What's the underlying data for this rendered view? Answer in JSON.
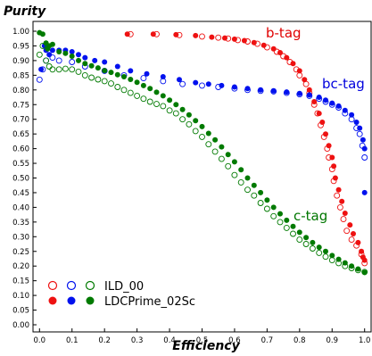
{
  "chart_data": {
    "type": "scatter",
    "title": "",
    "xlabel": "Efficiency",
    "ylabel": "Purity",
    "xlim": [
      -0.02,
      1.02
    ],
    "ylim": [
      0.0,
      1.0
    ],
    "xticks": [
      "0.0",
      "0.1",
      "0.2",
      "0.3",
      "0.4",
      "0.5",
      "0.6",
      "0.7",
      "0.8",
      "0.9",
      "1.0"
    ],
    "yticks": [
      "0.00",
      "0.05",
      "0.10",
      "0.15",
      "0.20",
      "0.25",
      "0.30",
      "0.35",
      "0.40",
      "0.45",
      "0.50",
      "0.55",
      "0.60",
      "0.65",
      "0.70",
      "0.75",
      "0.80",
      "0.85",
      "0.90",
      "0.95",
      "1.00"
    ],
    "legend_position": "bottom-left",
    "legend": [
      {
        "label": "ILD_00",
        "style": "open"
      },
      {
        "label": "LDCPrime_02Sc",
        "style": "filled"
      }
    ],
    "annotations": [
      {
        "text": "b-tag",
        "color": "#e00000"
      },
      {
        "text": "bc-tag",
        "color": "#0000dd"
      },
      {
        "text": "c-tag",
        "color": "#007700"
      }
    ],
    "colors": {
      "b": "#ee1111",
      "bc": "#0011ee",
      "c": "#007a00"
    },
    "series": [
      {
        "tag": "b-tag",
        "sample": "ILD_00",
        "open": true,
        "color": "#ee1111",
        "points": [
          [
            0.28,
            0.99
          ],
          [
            0.36,
            0.99
          ],
          [
            0.43,
            0.987
          ],
          [
            0.5,
            0.982
          ],
          [
            0.55,
            0.978
          ],
          [
            0.58,
            0.975
          ],
          [
            0.61,
            0.97
          ],
          [
            0.64,
            0.965
          ],
          [
            0.67,
            0.957
          ],
          [
            0.7,
            0.945
          ],
          [
            0.73,
            0.93
          ],
          [
            0.75,
            0.915
          ],
          [
            0.77,
            0.895
          ],
          [
            0.79,
            0.87
          ],
          [
            0.8,
            0.85
          ],
          [
            0.82,
            0.82
          ],
          [
            0.83,
            0.79
          ],
          [
            0.845,
            0.75
          ],
          [
            0.855,
            0.72
          ],
          [
            0.865,
            0.68
          ],
          [
            0.875,
            0.64
          ],
          [
            0.885,
            0.6
          ],
          [
            0.89,
            0.57
          ],
          [
            0.9,
            0.53
          ],
          [
            0.905,
            0.49
          ],
          [
            0.915,
            0.44
          ],
          [
            0.925,
            0.4
          ],
          [
            0.935,
            0.36
          ],
          [
            0.945,
            0.32
          ],
          [
            0.96,
            0.29
          ],
          [
            0.975,
            0.27
          ],
          [
            0.99,
            0.24
          ],
          [
            1.0,
            0.21
          ]
        ]
      },
      {
        "tag": "b-tag",
        "sample": "LDCPrime_02Sc",
        "open": false,
        "color": "#ee1111",
        "points": [
          [
            0.27,
            0.99
          ],
          [
            0.35,
            0.99
          ],
          [
            0.42,
            0.988
          ],
          [
            0.48,
            0.985
          ],
          [
            0.53,
            0.98
          ],
          [
            0.57,
            0.977
          ],
          [
            0.6,
            0.973
          ],
          [
            0.63,
            0.968
          ],
          [
            0.66,
            0.961
          ],
          [
            0.69,
            0.952
          ],
          [
            0.72,
            0.94
          ],
          [
            0.74,
            0.927
          ],
          [
            0.76,
            0.91
          ],
          [
            0.78,
            0.89
          ],
          [
            0.8,
            0.865
          ],
          [
            0.815,
            0.835
          ],
          [
            0.83,
            0.8
          ],
          [
            0.845,
            0.76
          ],
          [
            0.86,
            0.72
          ],
          [
            0.87,
            0.69
          ],
          [
            0.88,
            0.65
          ],
          [
            0.89,
            0.61
          ],
          [
            0.9,
            0.57
          ],
          [
            0.905,
            0.54
          ],
          [
            0.91,
            0.5
          ],
          [
            0.92,
            0.46
          ],
          [
            0.93,
            0.42
          ],
          [
            0.94,
            0.38
          ],
          [
            0.955,
            0.34
          ],
          [
            0.965,
            0.31
          ],
          [
            0.98,
            0.28
          ],
          [
            0.99,
            0.25
          ],
          [
            0.995,
            0.23
          ],
          [
            1.0,
            0.22
          ]
        ]
      },
      {
        "tag": "bc-tag",
        "sample": "ILD_00",
        "open": true,
        "color": "#0011ee",
        "points": [
          [
            0.0,
            0.835
          ],
          [
            0.01,
            0.87
          ],
          [
            0.02,
            0.9
          ],
          [
            0.04,
            0.91
          ],
          [
            0.06,
            0.9
          ],
          [
            0.1,
            0.895
          ],
          [
            0.14,
            0.88
          ],
          [
            0.2,
            0.865
          ],
          [
            0.26,
            0.85
          ],
          [
            0.32,
            0.84
          ],
          [
            0.38,
            0.83
          ],
          [
            0.44,
            0.82
          ],
          [
            0.5,
            0.815
          ],
          [
            0.55,
            0.81
          ],
          [
            0.6,
            0.805
          ],
          [
            0.64,
            0.8
          ],
          [
            0.68,
            0.797
          ],
          [
            0.72,
            0.795
          ],
          [
            0.76,
            0.79
          ],
          [
            0.8,
            0.785
          ],
          [
            0.83,
            0.78
          ],
          [
            0.86,
            0.77
          ],
          [
            0.88,
            0.76
          ],
          [
            0.9,
            0.75
          ],
          [
            0.92,
            0.74
          ],
          [
            0.94,
            0.72
          ],
          [
            0.96,
            0.7
          ],
          [
            0.975,
            0.67
          ],
          [
            0.985,
            0.65
          ],
          [
            0.993,
            0.61
          ],
          [
            1.0,
            0.57
          ]
        ]
      },
      {
        "tag": "bc-tag",
        "sample": "LDCPrime_02Sc",
        "open": false,
        "color": "#0011ee",
        "points": [
          [
            0.005,
            0.87
          ],
          [
            0.015,
            0.95
          ],
          [
            0.02,
            0.935
          ],
          [
            0.03,
            0.92
          ],
          [
            0.04,
            0.935
          ],
          [
            0.06,
            0.935
          ],
          [
            0.08,
            0.935
          ],
          [
            0.1,
            0.93
          ],
          [
            0.12,
            0.92
          ],
          [
            0.14,
            0.91
          ],
          [
            0.17,
            0.9
          ],
          [
            0.2,
            0.895
          ],
          [
            0.24,
            0.88
          ],
          [
            0.28,
            0.865
          ],
          [
            0.33,
            0.855
          ],
          [
            0.38,
            0.845
          ],
          [
            0.43,
            0.835
          ],
          [
            0.48,
            0.825
          ],
          [
            0.52,
            0.82
          ],
          [
            0.56,
            0.815
          ],
          [
            0.6,
            0.81
          ],
          [
            0.64,
            0.805
          ],
          [
            0.68,
            0.8
          ],
          [
            0.72,
            0.797
          ],
          [
            0.76,
            0.793
          ],
          [
            0.8,
            0.788
          ],
          [
            0.83,
            0.783
          ],
          [
            0.86,
            0.775
          ],
          [
            0.88,
            0.765
          ],
          [
            0.9,
            0.755
          ],
          [
            0.92,
            0.745
          ],
          [
            0.94,
            0.73
          ],
          [
            0.96,
            0.715
          ],
          [
            0.975,
            0.69
          ],
          [
            0.985,
            0.67
          ],
          [
            0.995,
            0.63
          ],
          [
            1.0,
            0.6
          ],
          [
            1.0,
            0.45
          ]
        ]
      },
      {
        "tag": "c-tag",
        "sample": "ILD_00",
        "open": true,
        "color": "#007a00",
        "points": [
          [
            0.0,
            0.92
          ],
          [
            0.01,
            0.95
          ],
          [
            0.02,
            0.9
          ],
          [
            0.03,
            0.88
          ],
          [
            0.04,
            0.87
          ],
          [
            0.06,
            0.87
          ],
          [
            0.08,
            0.872
          ],
          [
            0.1,
            0.87
          ],
          [
            0.12,
            0.862
          ],
          [
            0.14,
            0.85
          ],
          [
            0.16,
            0.842
          ],
          [
            0.18,
            0.836
          ],
          [
            0.2,
            0.83
          ],
          [
            0.22,
            0.822
          ],
          [
            0.24,
            0.81
          ],
          [
            0.26,
            0.8
          ],
          [
            0.28,
            0.79
          ],
          [
            0.3,
            0.78
          ],
          [
            0.32,
            0.77
          ],
          [
            0.34,
            0.76
          ],
          [
            0.36,
            0.752
          ],
          [
            0.38,
            0.745
          ],
          [
            0.4,
            0.73
          ],
          [
            0.42,
            0.72
          ],
          [
            0.44,
            0.7
          ],
          [
            0.46,
            0.683
          ],
          [
            0.48,
            0.66
          ],
          [
            0.5,
            0.64
          ],
          [
            0.52,
            0.615
          ],
          [
            0.54,
            0.59
          ],
          [
            0.56,
            0.565
          ],
          [
            0.58,
            0.54
          ],
          [
            0.6,
            0.51
          ],
          [
            0.62,
            0.485
          ],
          [
            0.64,
            0.46
          ],
          [
            0.66,
            0.44
          ],
          [
            0.68,
            0.415
          ],
          [
            0.7,
            0.395
          ],
          [
            0.72,
            0.37
          ],
          [
            0.74,
            0.35
          ],
          [
            0.76,
            0.33
          ],
          [
            0.78,
            0.31
          ],
          [
            0.8,
            0.29
          ],
          [
            0.82,
            0.275
          ],
          [
            0.84,
            0.26
          ],
          [
            0.86,
            0.245
          ],
          [
            0.88,
            0.232
          ],
          [
            0.9,
            0.22
          ],
          [
            0.92,
            0.21
          ],
          [
            0.94,
            0.2
          ],
          [
            0.96,
            0.193
          ],
          [
            0.98,
            0.186
          ],
          [
            1.0,
            0.18
          ]
        ]
      },
      {
        "tag": "c-tag",
        "sample": "LDCPrime_02Sc",
        "open": false,
        "color": "#007a00",
        "points": [
          [
            0.0,
            0.995
          ],
          [
            0.01,
            0.99
          ],
          [
            0.02,
            0.96
          ],
          [
            0.025,
            0.94
          ],
          [
            0.03,
            0.95
          ],
          [
            0.04,
            0.955
          ],
          [
            0.06,
            0.93
          ],
          [
            0.08,
            0.925
          ],
          [
            0.1,
            0.915
          ],
          [
            0.12,
            0.9
          ],
          [
            0.14,
            0.89
          ],
          [
            0.16,
            0.882
          ],
          [
            0.18,
            0.875
          ],
          [
            0.2,
            0.866
          ],
          [
            0.22,
            0.86
          ],
          [
            0.24,
            0.852
          ],
          [
            0.26,
            0.845
          ],
          [
            0.28,
            0.836
          ],
          [
            0.3,
            0.826
          ],
          [
            0.32,
            0.815
          ],
          [
            0.34,
            0.805
          ],
          [
            0.36,
            0.792
          ],
          [
            0.38,
            0.78
          ],
          [
            0.4,
            0.765
          ],
          [
            0.42,
            0.75
          ],
          [
            0.44,
            0.733
          ],
          [
            0.46,
            0.715
          ],
          [
            0.48,
            0.695
          ],
          [
            0.5,
            0.675
          ],
          [
            0.52,
            0.652
          ],
          [
            0.54,
            0.63
          ],
          [
            0.56,
            0.606
          ],
          [
            0.58,
            0.58
          ],
          [
            0.6,
            0.555
          ],
          [
            0.62,
            0.528
          ],
          [
            0.64,
            0.5
          ],
          [
            0.66,
            0.475
          ],
          [
            0.68,
            0.45
          ],
          [
            0.7,
            0.425
          ],
          [
            0.72,
            0.4
          ],
          [
            0.74,
            0.378
          ],
          [
            0.76,
            0.356
          ],
          [
            0.78,
            0.335
          ],
          [
            0.8,
            0.315
          ],
          [
            0.82,
            0.297
          ],
          [
            0.84,
            0.28
          ],
          [
            0.86,
            0.264
          ],
          [
            0.88,
            0.25
          ],
          [
            0.9,
            0.236
          ],
          [
            0.92,
            0.223
          ],
          [
            0.94,
            0.211
          ],
          [
            0.96,
            0.2
          ],
          [
            0.98,
            0.19
          ],
          [
            1.0,
            0.178
          ]
        ]
      }
    ]
  }
}
